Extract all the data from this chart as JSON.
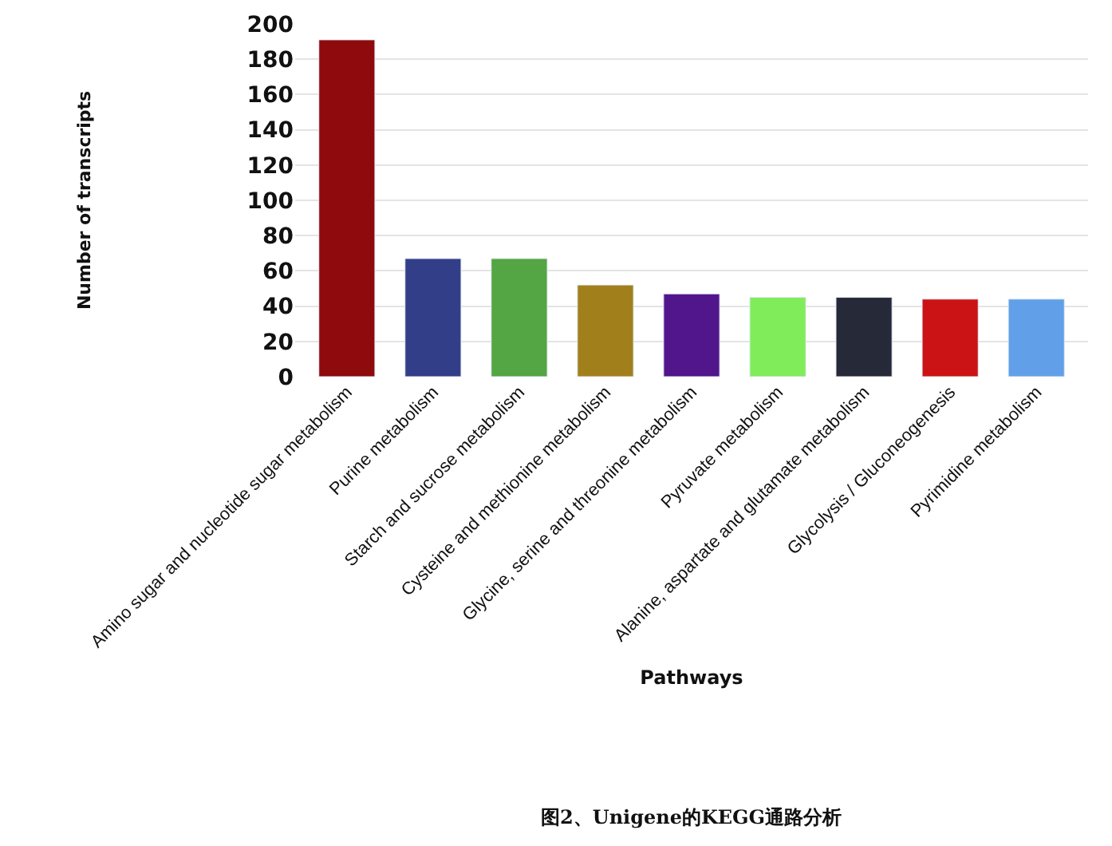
{
  "chart_data": {
    "type": "bar",
    "categories": [
      "Amino sugar and nucleotide sugar metabolism",
      "Purine metabolism",
      "Starch and sucrose metabolism",
      "Cysteine and methionine metabolism",
      "Glycine, serine and threonine metabolism",
      "Pyruvate metabolism",
      "Alanine, aspartate and glutamate metabolism",
      "Glycolysis / Gluconeogenesis",
      "Pyrimidine metabolism"
    ],
    "values": [
      191,
      67,
      67,
      52,
      47,
      45,
      45,
      44,
      44
    ],
    "colors": [
      "#8f0a0c",
      "#323f88",
      "#54a543",
      "#a1801c",
      "#52168c",
      "#80ec5a",
      "#262a38",
      "#cb1316",
      "#61a0e8"
    ],
    "xlabel": "Pathways",
    "ylabel": "Number of transcripts",
    "ylim": [
      0,
      200
    ],
    "yticks": [
      0,
      20,
      40,
      60,
      80,
      100,
      120,
      140,
      160,
      180,
      200
    ],
    "grid": "y",
    "annotations": [
      "图2、Unigene的KEGG通路分析"
    ]
  }
}
